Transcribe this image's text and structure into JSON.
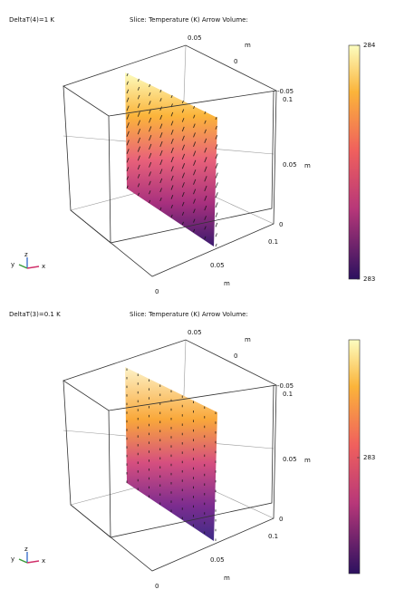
{
  "panels": [
    {
      "label": "DeltaT(4)=1 K",
      "title": "Slice: Temperature (K)  Arrow Volume:",
      "ticks": [
        "0.05",
        "m",
        "0",
        "-0.05",
        "0.1",
        "0.05",
        "m",
        "0",
        "0.1",
        "0.05",
        "m",
        "0"
      ],
      "triad": [
        "z",
        "y",
        "x"
      ],
      "colorbar_labels": [
        "284",
        "283"
      ]
    },
    {
      "label": "DeltaT(3)=0.1 K",
      "title": "Slice: Temperature (K)  Arrow Volume:",
      "ticks": [
        "0.05",
        "m",
        "0",
        "-0.05",
        "0.1",
        "0.05",
        "m",
        "0",
        "0.1",
        "0.05",
        "m",
        "0"
      ],
      "triad": [
        "z",
        "y",
        "x"
      ],
      "colorbar_labels": [
        "283"
      ]
    }
  ]
}
